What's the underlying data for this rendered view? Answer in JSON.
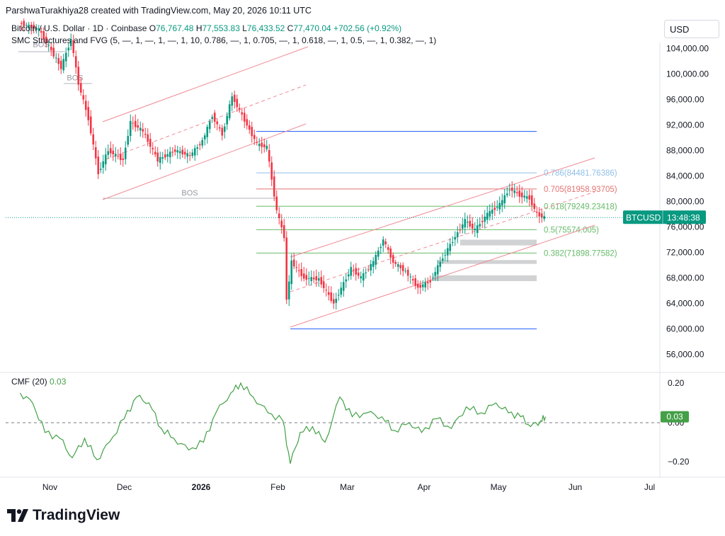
{
  "header": {
    "credit": "ParshwaTurakhiya28 created with TradingView.com, May 20, 2026 10:11 UTC",
    "symbol_line": "Bitcoin / U.S. Dollar · 1D · Coinbase",
    "o_label": "O",
    "o_value": "76,767.48",
    "h_label": "H",
    "h_value": "77,553.83",
    "l_label": "L",
    "l_value": "76,433.52",
    "c_label": "C",
    "c_value": "77,470.04",
    "change": "+702.56 (+0.92%)",
    "indicator_line": "SMC Structures and FVG (5, —, 1, —, 1, —, 1, 10, 0.786, —, 1, 0.705, —, 1, 0.618, —, 1, 0.5, —, 1, 0.382, —, 1)"
  },
  "currency_button": "USD",
  "cmf_legend": {
    "label": "CMF (20)",
    "value": "0.03"
  },
  "logo_text": "TradingView",
  "colors": {
    "up": "#089981",
    "down": "#f23645",
    "channel": "#f08a95",
    "fib_blue": "#2962ff",
    "fib_lightblue": "#90bfe8",
    "fib_red": "#e57373",
    "fib_green": "#66bb6a",
    "price_tag": "#089981",
    "cmf_line": "#43a047",
    "grey_zone": "#c9cacc"
  },
  "chart_data": [
    {
      "type": "candlestick",
      "title": "Bitcoin / U.S. Dollar · 1D · Coinbase",
      "x_tick_labels": [
        "Nov",
        "Dec",
        "2026",
        "Feb",
        "Mar",
        "Apr",
        "May",
        "Jun",
        "Jul"
      ],
      "y_tick_labels": [
        "104,000.00",
        "100,000.00",
        "96,000.00",
        "92,000.00",
        "88,000.00",
        "84,000.00",
        "80,000.00",
        "76,000.00",
        "72,000.00",
        "68,000.00",
        "64,000.00",
        "60,000.00",
        "56,000.00"
      ],
      "ylim": [
        53000,
        108500
      ],
      "last_price": 77470.04,
      "price_tag": {
        "symbol": "BTCUSD",
        "countdown": "13:48:38"
      },
      "fib_levels": [
        {
          "label": "0.786(84481.76386)",
          "value": 84481.76
        },
        {
          "label": "0.705(81958.93705)",
          "value": 81958.94
        },
        {
          "label": "0.618(79249.23418)",
          "value": 79249.23
        },
        {
          "label": "0.5(75574.005)",
          "value": 75574.01
        },
        {
          "label": "0.382(71898.77582)",
          "value": 71898.78
        }
      ],
      "fib_range": {
        "high": 91000,
        "low": 60000
      },
      "structure_labels": [
        {
          "label": "BOS",
          "value": 80500
        },
        {
          "label": "BOS",
          "value": 105500
        },
        {
          "label": "BOS",
          "value": 99000
        }
      ],
      "swing_path": [
        {
          "date": "2025-10-20",
          "close": 108000
        },
        {
          "date": "2025-10-28",
          "close": 107000
        },
        {
          "date": "2025-11-03",
          "close": 103000
        },
        {
          "date": "2025-11-06",
          "close": 101000
        },
        {
          "date": "2025-11-10",
          "close": 105500
        },
        {
          "date": "2025-11-13",
          "close": 98500
        },
        {
          "date": "2025-11-17",
          "close": 93000
        },
        {
          "date": "2025-11-21",
          "close": 84500
        },
        {
          "date": "2025-11-25",
          "close": 88000
        },
        {
          "date": "2025-12-01",
          "close": 86500
        },
        {
          "date": "2025-12-04",
          "close": 92500
        },
        {
          "date": "2025-12-09",
          "close": 91000
        },
        {
          "date": "2025-12-15",
          "close": 86500
        },
        {
          "date": "2025-12-22",
          "close": 88000
        },
        {
          "date": "2025-12-28",
          "close": 87200
        },
        {
          "date": "2026-01-02",
          "close": 89500
        },
        {
          "date": "2026-01-06",
          "close": 93500
        },
        {
          "date": "2026-01-10",
          "close": 90500
        },
        {
          "date": "2026-01-14",
          "close": 96500
        },
        {
          "date": "2026-01-20",
          "close": 92000
        },
        {
          "date": "2026-01-24",
          "close": 89000
        },
        {
          "date": "2026-01-28",
          "close": 88500
        },
        {
          "date": "2026-02-01",
          "close": 78500
        },
        {
          "date": "2026-02-04",
          "close": 74500
        },
        {
          "date": "2026-02-05",
          "close": 64500
        },
        {
          "date": "2026-02-07",
          "close": 70500
        },
        {
          "date": "2026-02-12",
          "close": 68000
        },
        {
          "date": "2026-02-18",
          "close": 67800
        },
        {
          "date": "2026-02-24",
          "close": 64000
        },
        {
          "date": "2026-03-03",
          "close": 69500
        },
        {
          "date": "2026-03-07",
          "close": 68000
        },
        {
          "date": "2026-03-12",
          "close": 70500
        },
        {
          "date": "2026-03-16",
          "close": 74000
        },
        {
          "date": "2026-03-20",
          "close": 70500
        },
        {
          "date": "2026-03-25",
          "close": 69000
        },
        {
          "date": "2026-03-30",
          "close": 66500
        },
        {
          "date": "2026-04-04",
          "close": 67500
        },
        {
          "date": "2026-04-08",
          "close": 70500
        },
        {
          "date": "2026-04-14",
          "close": 74500
        },
        {
          "date": "2026-04-18",
          "close": 77000
        },
        {
          "date": "2026-04-22",
          "close": 75500
        },
        {
          "date": "2026-04-27",
          "close": 78000
        },
        {
          "date": "2026-05-02",
          "close": 79500
        },
        {
          "date": "2026-05-06",
          "close": 82000
        },
        {
          "date": "2026-05-10",
          "close": 81000
        },
        {
          "date": "2026-05-14",
          "close": 80500
        },
        {
          "date": "2026-05-17",
          "close": 78000
        },
        {
          "date": "2026-05-20",
          "close": 77470
        }
      ]
    },
    {
      "type": "line",
      "title": "CMF (20)",
      "y_tick_labels": [
        "0.20",
        "0.00",
        "−0.20"
      ],
      "ylim": [
        -0.27,
        0.255
      ],
      "current_value": 0.03,
      "series": [
        {
          "date": "2025-10-20",
          "value": 0.15
        },
        {
          "date": "2025-10-25",
          "value": 0.1
        },
        {
          "date": "2025-10-30",
          "value": -0.05
        },
        {
          "date": "2025-11-05",
          "value": -0.08
        },
        {
          "date": "2025-11-10",
          "value": -0.18
        },
        {
          "date": "2025-11-15",
          "value": -0.08
        },
        {
          "date": "2025-11-20",
          "value": -0.19
        },
        {
          "date": "2025-11-25",
          "value": -0.1
        },
        {
          "date": "2025-12-01",
          "value": 0.02
        },
        {
          "date": "2025-12-06",
          "value": 0.13
        },
        {
          "date": "2025-12-11",
          "value": 0.1
        },
        {
          "date": "2025-12-16",
          "value": -0.03
        },
        {
          "date": "2025-12-21",
          "value": -0.08
        },
        {
          "date": "2025-12-27",
          "value": -0.14
        },
        {
          "date": "2026-01-02",
          "value": -0.1
        },
        {
          "date": "2026-01-07",
          "value": 0.05
        },
        {
          "date": "2026-01-13",
          "value": 0.15
        },
        {
          "date": "2026-01-17",
          "value": 0.2
        },
        {
          "date": "2026-01-22",
          "value": 0.13
        },
        {
          "date": "2026-01-28",
          "value": 0.05
        },
        {
          "date": "2026-02-03",
          "value": 0.01
        },
        {
          "date": "2026-02-06",
          "value": -0.21
        },
        {
          "date": "2026-02-10",
          "value": -0.05
        },
        {
          "date": "2026-02-15",
          "value": -0.02
        },
        {
          "date": "2026-02-20",
          "value": -0.1
        },
        {
          "date": "2026-02-26",
          "value": 0.13
        },
        {
          "date": "2026-03-03",
          "value": 0.03
        },
        {
          "date": "2026-03-09",
          "value": 0.05
        },
        {
          "date": "2026-03-15",
          "value": 0.03
        },
        {
          "date": "2026-03-20",
          "value": -0.04
        },
        {
          "date": "2026-03-26",
          "value": 0.0
        },
        {
          "date": "2026-03-31",
          "value": -0.05
        },
        {
          "date": "2026-04-06",
          "value": 0.02
        },
        {
          "date": "2026-04-12",
          "value": -0.03
        },
        {
          "date": "2026-04-18",
          "value": 0.08
        },
        {
          "date": "2026-04-24",
          "value": 0.05
        },
        {
          "date": "2026-04-30",
          "value": 0.1
        },
        {
          "date": "2026-05-05",
          "value": 0.05
        },
        {
          "date": "2026-05-10",
          "value": 0.03
        },
        {
          "date": "2026-05-14",
          "value": -0.02
        },
        {
          "date": "2026-05-18",
          "value": 0.01
        },
        {
          "date": "2026-05-20",
          "value": 0.03
        }
      ]
    }
  ]
}
